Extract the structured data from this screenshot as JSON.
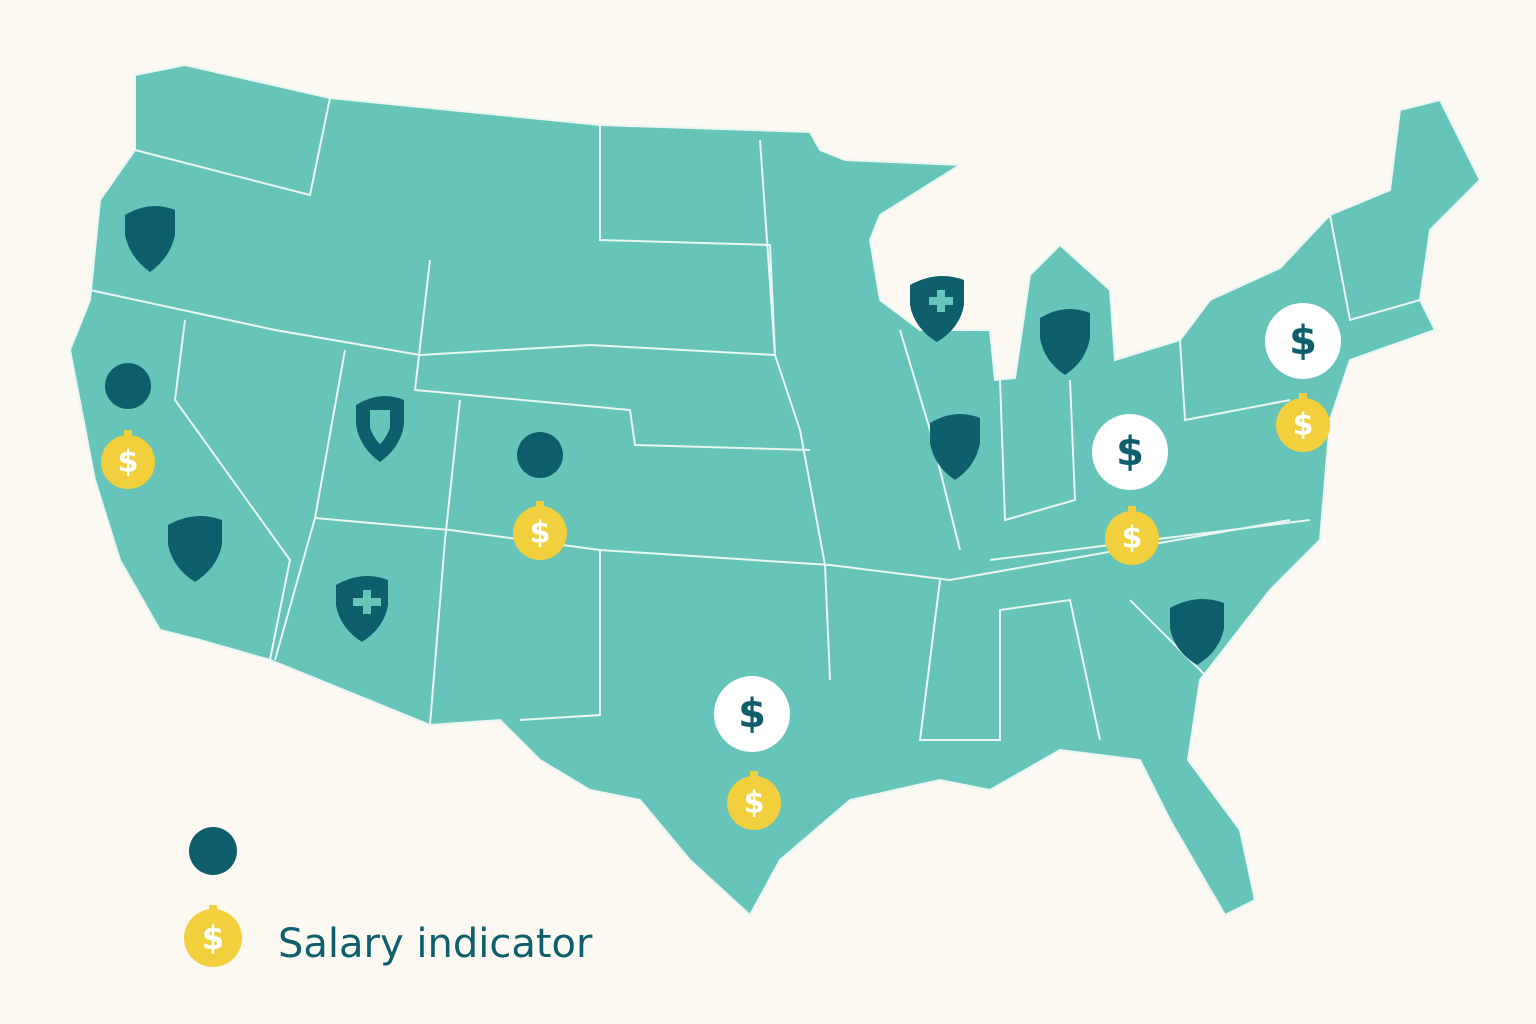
{
  "symbol": "$",
  "legend": {
    "salary_label": "Salary indicator"
  }
}
